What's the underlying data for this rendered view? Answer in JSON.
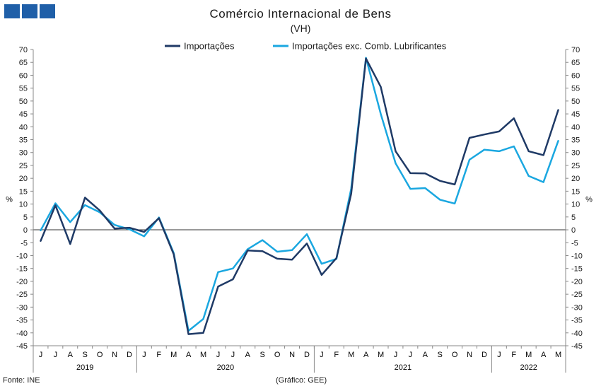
{
  "title": "Comércio Internacional de Bens",
  "subtitle": "(VH)",
  "source": "Fonte: INE",
  "credit": "(Gráfico: GEE)",
  "colors": {
    "imports": "#1f3a66",
    "imports_ex": "#1aa7e0",
    "logo": "#1f5fa8"
  },
  "chart_data": {
    "type": "line",
    "ylabel_left": "%",
    "ylabel_right": "%",
    "ylim": [
      -45,
      70
    ],
    "yticks": [
      70,
      65,
      60,
      55,
      50,
      45,
      40,
      35,
      30,
      25,
      20,
      15,
      10,
      5,
      0,
      -5,
      -10,
      -15,
      -20,
      -25,
      -30,
      -35,
      -40,
      -45
    ],
    "legend_position": "top-center",
    "categories": [
      "J",
      "J",
      "A",
      "S",
      "O",
      "N",
      "D",
      "J",
      "F",
      "M",
      "A",
      "M",
      "J",
      "J",
      "A",
      "S",
      "O",
      "N",
      "D",
      "J",
      "F",
      "M",
      "A",
      "M",
      "J",
      "J",
      "A",
      "S",
      "O",
      "N",
      "D",
      "J",
      "F",
      "M",
      "A",
      "M"
    ],
    "years": [
      {
        "label": "2019",
        "start": 0,
        "end": 6
      },
      {
        "label": "2020",
        "start": 7,
        "end": 18
      },
      {
        "label": "2021",
        "start": 19,
        "end": 30
      },
      {
        "label": "2022",
        "start": 31,
        "end": 35
      }
    ],
    "series": [
      {
        "name": "Importações",
        "color_key": "imports",
        "values": [
          -4.3,
          9.5,
          -5.5,
          12.5,
          7.5,
          0.5,
          0.8,
          -0.8,
          4.5,
          -9.5,
          -40.5,
          -40.0,
          -22.0,
          -19.2,
          -8.0,
          -8.3,
          -11.2,
          -11.6,
          -5.3,
          -17.5,
          -11.0,
          14.0,
          66.5,
          55.5,
          30.5,
          22.0,
          21.9,
          19.0,
          17.6,
          35.7,
          37.0,
          38.2,
          43.3,
          30.5,
          29.0,
          46.5
        ]
      },
      {
        "name": "Importações exc. Comb. Lubrificantes",
        "color_key": "imports_ex",
        "values": [
          -0.2,
          10.3,
          3.0,
          9.6,
          6.8,
          1.9,
          0.2,
          -2.5,
          4.8,
          -9.0,
          -39.2,
          -34.6,
          -16.4,
          -15.0,
          -7.5,
          -4.0,
          -8.5,
          -7.9,
          -1.7,
          -13.2,
          -11.3,
          16.0,
          66.8,
          45.0,
          25.8,
          15.9,
          16.2,
          11.7,
          10.2,
          27.2,
          31.1,
          30.5,
          32.4,
          20.9,
          18.5,
          34.5
        ]
      }
    ]
  }
}
